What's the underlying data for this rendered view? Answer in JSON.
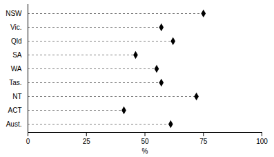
{
  "chart_data": {
    "type": "dot",
    "orientation": "horizontal",
    "categories": [
      "NSW",
      "Vic.",
      "Qld",
      "SA",
      "WA",
      "Tas.",
      "NT",
      "ACT",
      "Aust."
    ],
    "values": [
      75,
      57,
      62,
      46,
      55,
      57,
      72,
      41,
      61
    ],
    "color": "#000000",
    "marker": "diamond",
    "line_style": "dashed",
    "xlabel": "%",
    "xlim": [
      0,
      100
    ],
    "xticks": [
      0,
      25,
      50,
      75,
      100
    ]
  }
}
